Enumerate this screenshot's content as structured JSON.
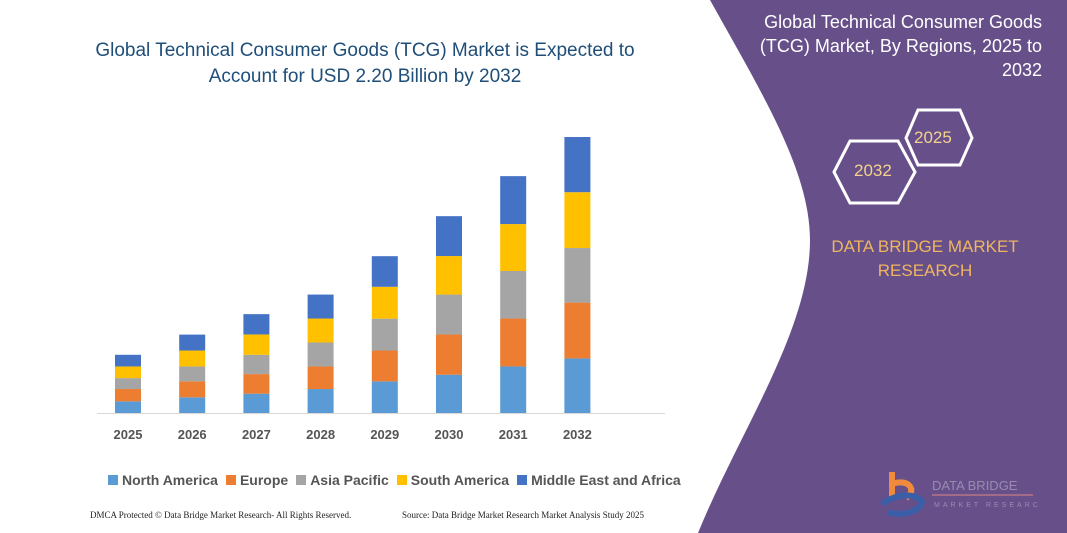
{
  "title": "Global Technical Consumer Goods (TCG) Market is Expected to Account for USD 2.20 Billion by 2032",
  "panel": {
    "title": "Global Technical Consumer Goods (TCG) Market, By Regions, 2025 to 2032",
    "hex_left": "2032",
    "hex_right": "2025",
    "brand": "DATA BRIDGE MARKET RESEARCH",
    "logo_text": "DATA BRIDGE MARKET RESEARCH",
    "color": "#67508a"
  },
  "footer": {
    "left": "DMCA Protected © Data Bridge Market Research- All Rights Reserved.",
    "right": "Source: Data Bridge Market Research Market Analysis Study 2025"
  },
  "chart_data": {
    "type": "bar",
    "stacked": true,
    "title": "Global Technical Consumer Goods (TCG) Market is Expected to Account for USD 2.20 Billion by 2032",
    "categories": [
      "2025",
      "2026",
      "2027",
      "2028",
      "2029",
      "2030",
      "2031",
      "2032"
    ],
    "legend_position": "bottom",
    "grid": false,
    "ylim": [
      0,
      2.2
    ],
    "series": [
      {
        "name": "North America",
        "color": "#5b9bd5",
        "values": [
          0.093,
          0.125,
          0.154,
          0.191,
          0.252,
          0.305,
          0.371,
          0.435
        ]
      },
      {
        "name": "Europe",
        "color": "#ed7d31",
        "values": [
          0.098,
          0.127,
          0.156,
          0.18,
          0.246,
          0.321,
          0.382,
          0.445
        ]
      },
      {
        "name": "Asia Pacific",
        "color": "#a5a5a5",
        "values": [
          0.087,
          0.119,
          0.154,
          0.191,
          0.254,
          0.318,
          0.379,
          0.435
        ]
      },
      {
        "name": "South America",
        "color": "#ffc000",
        "values": [
          0.093,
          0.127,
          0.162,
          0.191,
          0.254,
          0.307,
          0.374,
          0.445
        ]
      },
      {
        "name": "Middle East and Africa",
        "color": "#4472c4",
        "values": [
          0.093,
          0.127,
          0.162,
          0.191,
          0.244,
          0.318,
          0.382,
          0.44
        ]
      }
    ]
  }
}
